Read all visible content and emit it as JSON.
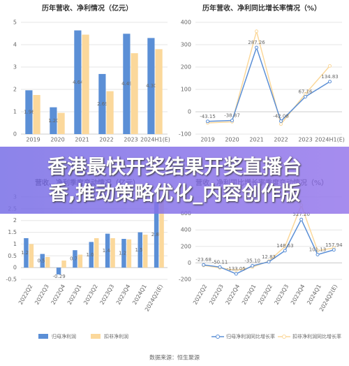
{
  "chart_data": [
    {
      "type": "bar",
      "title": "历年营收、净利情况（亿元）",
      "categories": [
        "2019",
        "2020",
        "2021",
        "2022",
        "2023",
        "2024H1(E)"
      ],
      "series": [
        {
          "color": "#5b8fd6",
          "values": [
            1.96,
            1.2,
            4.64,
            2.69,
            4.49,
            4.3
          ],
          "value_labels": [
            "1.96",
            "1.20",
            "4.64",
            "2.69",
            "4.49",
            "4.30"
          ]
        },
        {
          "color": "#fbd89b",
          "values": [
            1.75,
            0.95,
            4.45,
            1.92,
            3.62,
            3.8
          ]
        }
      ],
      "ylim": [
        0,
        5
      ],
      "yticks": [
        0,
        1,
        2,
        3,
        4,
        5
      ],
      "grid": true
    },
    {
      "type": "line",
      "title": "历年营收、净利同比增长率情况（%）",
      "categories": [
        "2019",
        "2020",
        "2021",
        "2022",
        "2023",
        "2024H1(E)"
      ],
      "series": [
        {
          "color": "#5b8fd6",
          "values": [
            -43.15,
            -38.87,
            287.26,
            -42.08,
            67.16,
            134.83
          ],
          "value_labels": [
            "-43.15",
            "-38.87",
            "287.26",
            "-42.08",
            "67.16",
            "134.83"
          ]
        },
        {
          "color": "#fbd89b",
          "values": [
            -50,
            -45,
            360,
            -55,
            80,
            205
          ]
        }
      ],
      "ylim": [
        -100,
        400
      ],
      "yticks": [
        -100,
        0,
        100,
        200,
        300,
        400
      ],
      "grid": true
    },
    {
      "type": "bar",
      "title": "营收、净利季度变动情况（亿元）",
      "categories": [
        "2022Q2",
        "2022Q3",
        "2022Q4",
        "2023Q1",
        "2023Q2",
        "2023Q3",
        "2023Q4",
        "2024Q1",
        "2024Q2(E)"
      ],
      "series": [
        {
          "name": "归母净利润",
          "color": "#5b8fd6",
          "values": [
            1.25,
            0.58,
            -0.29,
            0.74,
            1.09,
            1.44,
            1.22,
            1.5,
            2.8
          ],
          "value_labels": [
            "1.25",
            "0.58",
            "-0.29",
            "0.74",
            "1.09",
            "1.44",
            "1.22",
            "1.50",
            "2.80"
          ]
        },
        {
          "name": "扣非净利润",
          "color": "#fbd89b",
          "values": [
            1.0,
            0.45,
            0.3,
            0.55,
            1.25,
            1.25,
            1.2,
            1.4,
            2.95
          ]
        }
      ],
      "ylim": [
        -0.5,
        3
      ],
      "yticks": [
        -0.5,
        0,
        0.5,
        1,
        1.5,
        2,
        2.5,
        3
      ],
      "grid": true
    },
    {
      "type": "line",
      "title": "营收、净利同比增长率季度变动情况（%）",
      "categories": [
        "2022Q2",
        "2022Q3",
        "2022Q4",
        "2023Q1",
        "2023Q2",
        "2023Q3",
        "2023Q4",
        "2024Q1",
        "2024Q2(E)"
      ],
      "series": [
        {
          "name": "归母净利润同比增长率",
          "color": "#5b8fd6",
          "values": [
            -23.68,
            -50.11,
            -133.05,
            -35.1,
            12.83,
            148.63,
            527.2,
            101.13,
            157.94
          ],
          "value_labels": [
            "-23.68",
            "-50.11",
            "-133.05",
            "-35.10",
            "12.83",
            "148.63",
            "527.20",
            "101.13",
            "157.94"
          ]
        },
        {
          "name": "扣非净利润同比增长率",
          "color": "#fbd89b",
          "values": [
            -30,
            -60,
            -90,
            -50,
            20,
            200,
            700,
            150,
            180
          ]
        }
      ],
      "ylim": [
        -200,
        800
      ],
      "yticks": [
        -200,
        0,
        200,
        400,
        600,
        800
      ],
      "grid": true
    }
  ],
  "banner": "香港最快开奖结果开奖直播台香,推动策略优化_内容创作版",
  "source": "数据来源：恒生聚源"
}
